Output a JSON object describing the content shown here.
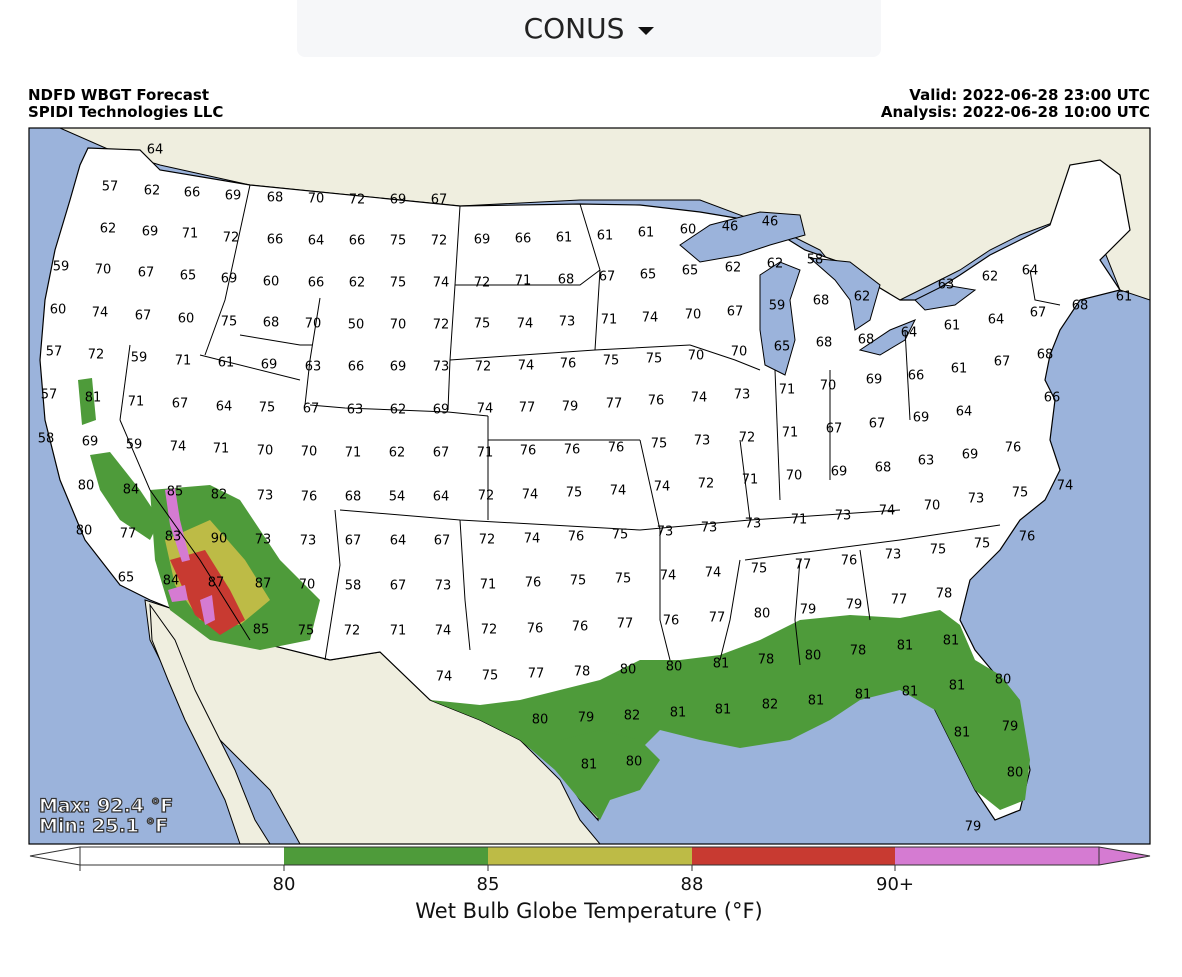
{
  "region_selector": {
    "label": "CONUS"
  },
  "header": {
    "title_line1": "NDFD WBGT Forecast",
    "title_line2": "SPIDI Technologies LLC",
    "valid": "Valid: 2022-06-28 23:00 UTC",
    "analysis": "Analysis: 2022-06-28 10:00 UTC"
  },
  "stats": {
    "max": "Max: 92.4 °F",
    "min": "Min: 25.1 °F"
  },
  "colorbar": {
    "title": "Wet Bulb Globe Temperature (°F)",
    "ticks": [
      "80",
      "85",
      "88",
      "90+"
    ],
    "colors": {
      "below": "#ffffff",
      "b80": "#4e9b3a",
      "b85": "#bdbb46",
      "b88": "#c83a31",
      "b90": "#d57bd2"
    }
  },
  "map_colors": {
    "ocean": "#9bb3db",
    "land": "#efeedf",
    "lakes": "#9bb3db",
    "wbgt80": "#4e9b3a",
    "wbgt85": "#bdbb46",
    "wbgt88": "#c83a31",
    "wbgt90": "#d57bd2"
  },
  "labels": [
    [
      "64",
      155,
      150
    ],
    [
      "57",
      110,
      187
    ],
    [
      "62",
      152,
      191
    ],
    [
      "66",
      192,
      193
    ],
    [
      "69",
      233,
      196
    ],
    [
      "68",
      275,
      198
    ],
    [
      "70",
      316,
      199
    ],
    [
      "72",
      357,
      200
    ],
    [
      "69",
      398,
      200
    ],
    [
      "67",
      439,
      200
    ],
    [
      "62",
      108,
      229
    ],
    [
      "69",
      150,
      232
    ],
    [
      "71",
      190,
      234
    ],
    [
      "72",
      231,
      238
    ],
    [
      "66",
      275,
      240
    ],
    [
      "64",
      316,
      241
    ],
    [
      "66",
      357,
      241
    ],
    [
      "75",
      398,
      241
    ],
    [
      "72",
      439,
      241
    ],
    [
      "69",
      482,
      240
    ],
    [
      "66",
      523,
      239
    ],
    [
      "61",
      564,
      238
    ],
    [
      "61",
      605,
      236
    ],
    [
      "61",
      646,
      233
    ],
    [
      "60",
      688,
      230
    ],
    [
      "46",
      730,
      227
    ],
    [
      "46",
      770,
      222
    ],
    [
      "59",
      61,
      267
    ],
    [
      "70",
      103,
      270
    ],
    [
      "67",
      146,
      273
    ],
    [
      "65",
      188,
      276
    ],
    [
      "69",
      229,
      279
    ],
    [
      "60",
      271,
      282
    ],
    [
      "66",
      316,
      283
    ],
    [
      "62",
      357,
      283
    ],
    [
      "75",
      398,
      283
    ],
    [
      "74",
      441,
      283
    ],
    [
      "72",
      482,
      283
    ],
    [
      "71",
      523,
      281
    ],
    [
      "68",
      566,
      280
    ],
    [
      "67",
      607,
      277
    ],
    [
      "65",
      648,
      275
    ],
    [
      "65",
      690,
      271
    ],
    [
      "62",
      733,
      268
    ],
    [
      "62",
      775,
      264
    ],
    [
      "58",
      815,
      260
    ],
    [
      "62",
      990,
      277
    ],
    [
      "64",
      1030,
      271
    ],
    [
      "60",
      58,
      310
    ],
    [
      "74",
      100,
      313
    ],
    [
      "67",
      143,
      316
    ],
    [
      "60",
      186,
      319
    ],
    [
      "75",
      229,
      322
    ],
    [
      "68",
      271,
      323
    ],
    [
      "70",
      313,
      324
    ],
    [
      "50",
      356,
      325
    ],
    [
      "70",
      398,
      325
    ],
    [
      "72",
      441,
      325
    ],
    [
      "75",
      482,
      324
    ],
    [
      "74",
      525,
      324
    ],
    [
      "73",
      567,
      322
    ],
    [
      "71",
      609,
      320
    ],
    [
      "74",
      650,
      318
    ],
    [
      "70",
      693,
      315
    ],
    [
      "67",
      735,
      312
    ],
    [
      "59",
      777,
      306
    ],
    [
      "68",
      821,
      301
    ],
    [
      "62",
      862,
      297
    ],
    [
      "63",
      946,
      285
    ],
    [
      "61",
      1124,
      297
    ],
    [
      "68",
      1080,
      306
    ],
    [
      "67",
      1038,
      313
    ],
    [
      "64",
      996,
      320
    ],
    [
      "61",
      952,
      326
    ],
    [
      "57",
      54,
      352
    ],
    [
      "72",
      96,
      355
    ],
    [
      "59",
      139,
      358
    ],
    [
      "71",
      183,
      361
    ],
    [
      "61",
      226,
      363
    ],
    [
      "69",
      269,
      365
    ],
    [
      "63",
      313,
      367
    ],
    [
      "66",
      356,
      367
    ],
    [
      "69",
      398,
      367
    ],
    [
      "73",
      441,
      367
    ],
    [
      "72",
      483,
      367
    ],
    [
      "74",
      526,
      366
    ],
    [
      "76",
      568,
      364
    ],
    [
      "75",
      611,
      361
    ],
    [
      "75",
      654,
      359
    ],
    [
      "70",
      696,
      356
    ],
    [
      "70",
      739,
      352
    ],
    [
      "65",
      782,
      347
    ],
    [
      "68",
      824,
      343
    ],
    [
      "68",
      866,
      340
    ],
    [
      "64",
      909,
      333
    ],
    [
      "61",
      959,
      369
    ],
    [
      "67",
      1002,
      362
    ],
    [
      "68",
      1045,
      355
    ],
    [
      "57",
      49,
      395
    ],
    [
      "81",
      93,
      398
    ],
    [
      "71",
      136,
      402
    ],
    [
      "67",
      180,
      404
    ],
    [
      "64",
      224,
      407
    ],
    [
      "75",
      267,
      408
    ],
    [
      "67",
      311,
      409
    ],
    [
      "63",
      355,
      410
    ],
    [
      "62",
      398,
      410
    ],
    [
      "69",
      441,
      410
    ],
    [
      "74",
      485,
      409
    ],
    [
      "77",
      527,
      408
    ],
    [
      "79",
      570,
      407
    ],
    [
      "77",
      614,
      404
    ],
    [
      "76",
      656,
      401
    ],
    [
      "74",
      699,
      398
    ],
    [
      "73",
      742,
      395
    ],
    [
      "71",
      787,
      390
    ],
    [
      "70",
      828,
      386
    ],
    [
      "69",
      874,
      380
    ],
    [
      "66",
      916,
      376
    ],
    [
      "69",
      921,
      418
    ],
    [
      "64",
      964,
      412
    ],
    [
      "66",
      1052,
      398
    ],
    [
      "58",
      46,
      439
    ],
    [
      "69",
      90,
      442
    ],
    [
      "59",
      134,
      445
    ],
    [
      "74",
      178,
      447
    ],
    [
      "71",
      221,
      449
    ],
    [
      "70",
      265,
      451
    ],
    [
      "70",
      309,
      452
    ],
    [
      "71",
      353,
      453
    ],
    [
      "62",
      397,
      453
    ],
    [
      "67",
      441,
      453
    ],
    [
      "71",
      485,
      453
    ],
    [
      "76",
      528,
      451
    ],
    [
      "76",
      572,
      450
    ],
    [
      "76",
      616,
      448
    ],
    [
      "75",
      659,
      444
    ],
    [
      "73",
      702,
      441
    ],
    [
      "72",
      747,
      438
    ],
    [
      "71",
      790,
      433
    ],
    [
      "67",
      834,
      429
    ],
    [
      "67",
      877,
      424
    ],
    [
      "69",
      970,
      455
    ],
    [
      "76",
      1013,
      448
    ],
    [
      "80",
      86,
      486
    ],
    [
      "84",
      131,
      490
    ],
    [
      "85",
      175,
      492
    ],
    [
      "82",
      219,
      495
    ],
    [
      "73",
      265,
      496
    ],
    [
      "76",
      309,
      497
    ],
    [
      "68",
      353,
      497
    ],
    [
      "54",
      397,
      497
    ],
    [
      "64",
      441,
      497
    ],
    [
      "72",
      486,
      496
    ],
    [
      "74",
      530,
      495
    ],
    [
      "75",
      574,
      493
    ],
    [
      "74",
      618,
      491
    ],
    [
      "74",
      662,
      487
    ],
    [
      "72",
      706,
      484
    ],
    [
      "71",
      750,
      480
    ],
    [
      "70",
      794,
      476
    ],
    [
      "69",
      839,
      472
    ],
    [
      "68",
      883,
      468
    ],
    [
      "63",
      926,
      461
    ],
    [
      "70",
      932,
      506
    ],
    [
      "73",
      976,
      499
    ],
    [
      "75",
      1020,
      493
    ],
    [
      "74",
      1065,
      486
    ],
    [
      "80",
      84,
      531
    ],
    [
      "77",
      128,
      534
    ],
    [
      "83",
      173,
      537
    ],
    [
      "90",
      219,
      539
    ],
    [
      "73",
      263,
      540
    ],
    [
      "73",
      308,
      541
    ],
    [
      "67",
      353,
      541
    ],
    [
      "64",
      398,
      541
    ],
    [
      "67",
      442,
      541
    ],
    [
      "72",
      487,
      540
    ],
    [
      "74",
      532,
      539
    ],
    [
      "76",
      576,
      537
    ],
    [
      "75",
      620,
      535
    ],
    [
      "73",
      665,
      532
    ],
    [
      "73",
      709,
      528
    ],
    [
      "73",
      753,
      524
    ],
    [
      "71",
      799,
      520
    ],
    [
      "73",
      843,
      516
    ],
    [
      "74",
      887,
      511
    ],
    [
      "75",
      938,
      550
    ],
    [
      "75",
      982,
      544
    ],
    [
      "76",
      1027,
      537
    ],
    [
      "65",
      126,
      578
    ],
    [
      "84",
      171,
      581
    ],
    [
      "87",
      216,
      583
    ],
    [
      "87",
      263,
      584
    ],
    [
      "70",
      307,
      585
    ],
    [
      "58",
      353,
      586
    ],
    [
      "67",
      398,
      586
    ],
    [
      "73",
      443,
      586
    ],
    [
      "71",
      488,
      585
    ],
    [
      "76",
      533,
      583
    ],
    [
      "75",
      578,
      581
    ],
    [
      "75",
      623,
      579
    ],
    [
      "74",
      668,
      576
    ],
    [
      "74",
      713,
      573
    ],
    [
      "75",
      759,
      569
    ],
    [
      "77",
      803,
      565
    ],
    [
      "76",
      849,
      561
    ],
    [
      "73",
      893,
      555
    ],
    [
      "77",
      899,
      600
    ],
    [
      "78",
      944,
      594
    ],
    [
      "85",
      261,
      630
    ],
    [
      "75",
      306,
      631
    ],
    [
      "72",
      352,
      631
    ],
    [
      "71",
      398,
      631
    ],
    [
      "74",
      443,
      631
    ],
    [
      "72",
      489,
      630
    ],
    [
      "76",
      535,
      629
    ],
    [
      "76",
      580,
      627
    ],
    [
      "77",
      625,
      624
    ],
    [
      "76",
      671,
      621
    ],
    [
      "77",
      717,
      618
    ],
    [
      "80",
      762,
      614
    ],
    [
      "79",
      808,
      610
    ],
    [
      "79",
      854,
      605
    ],
    [
      "81",
      951,
      641
    ],
    [
      "74",
      444,
      677
    ],
    [
      "75",
      490,
      676
    ],
    [
      "77",
      536,
      674
    ],
    [
      "78",
      582,
      672
    ],
    [
      "80",
      628,
      670
    ],
    [
      "80",
      674,
      667
    ],
    [
      "81",
      721,
      664
    ],
    [
      "78",
      766,
      660
    ],
    [
      "80",
      813,
      656
    ],
    [
      "78",
      858,
      651
    ],
    [
      "81",
      905,
      646
    ],
    [
      "80",
      1003,
      680
    ],
    [
      "81",
      957,
      686
    ],
    [
      "81",
      910,
      692
    ],
    [
      "81",
      863,
      695
    ],
    [
      "81",
      816,
      701
    ],
    [
      "82",
      770,
      705
    ],
    [
      "81",
      723,
      710
    ],
    [
      "81",
      678,
      713
    ],
    [
      "82",
      632,
      716
    ],
    [
      "79",
      586,
      718
    ],
    [
      "80",
      540,
      720
    ],
    [
      "79",
      1010,
      727
    ],
    [
      "81",
      962,
      733
    ],
    [
      "81",
      589,
      765
    ],
    [
      "80",
      634,
      762
    ],
    [
      "80",
      1015,
      773
    ],
    [
      "79",
      973,
      827
    ]
  ]
}
